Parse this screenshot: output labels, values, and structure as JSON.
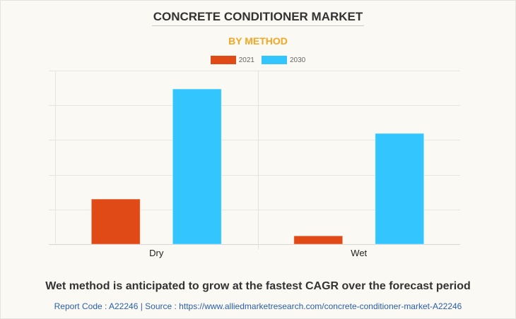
{
  "chart_data": {
    "type": "bar",
    "title": "CONCRETE CONDITIONER MARKET",
    "subtitle": "BY METHOD",
    "categories": [
      "Dry",
      "Wet"
    ],
    "series": [
      {
        "name": "2021",
        "color": "#e04a16",
        "values": [
          1.3,
          0.24
        ]
      },
      {
        "name": "2030",
        "color": "#33c6fe",
        "values": [
          4.47,
          3.19
        ]
      }
    ],
    "xlabel": "",
    "ylabel": "",
    "ylim": [
      0,
      5
    ],
    "y_unit_note": "relative scale (gridline units); no axis values shown",
    "grid": true,
    "gridline_count": 5,
    "legend_position": "top-center"
  },
  "caption": "Wet method is anticipated to grow at the fastest CAGR over the forecast period",
  "source": "Report Code : A22246  |  Source : https://www.alliedmarketresearch.com/concrete-conditioner-market-A22246"
}
